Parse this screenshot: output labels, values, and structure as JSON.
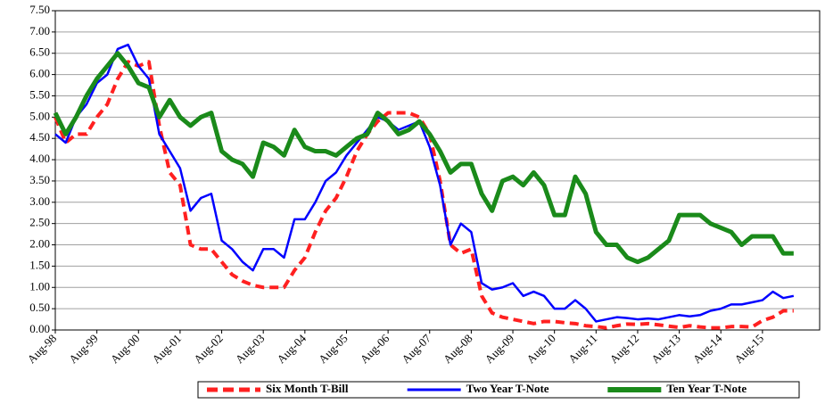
{
  "chart_data": {
    "type": "line",
    "categories": [
      "Aug-98",
      null,
      null,
      null,
      "Aug-99",
      null,
      null,
      null,
      "Aug-00",
      null,
      null,
      null,
      "Aug-01",
      null,
      null,
      null,
      "Aug-02",
      null,
      null,
      null,
      "Aug-03",
      null,
      null,
      null,
      "Aug-04",
      null,
      null,
      null,
      "Aug-05",
      null,
      null,
      null,
      "Aug-06",
      null,
      null,
      null,
      "Aug-07",
      null,
      null,
      null,
      "Aug-08",
      null,
      null,
      null,
      "Aug-09",
      null,
      null,
      null,
      "Aug-10",
      null,
      null,
      null,
      "Aug-11",
      null,
      null,
      null,
      "Aug-12",
      null,
      null,
      null,
      "Aug-13",
      null,
      null,
      null,
      "Aug-14",
      null,
      null,
      null,
      "Aug-15",
      null,
      null,
      null
    ],
    "series": [
      {
        "name": "Six Month T-Bill",
        "color": "#ff2020",
        "dash": true,
        "values": [
          5.0,
          4.4,
          4.6,
          4.6,
          5.0,
          5.3,
          5.9,
          6.3,
          6.2,
          6.3,
          4.8,
          3.7,
          3.4,
          2.0,
          1.9,
          1.9,
          1.6,
          1.3,
          1.15,
          1.05,
          1.0,
          1.0,
          1.0,
          1.4,
          1.7,
          2.3,
          2.8,
          3.1,
          3.6,
          4.2,
          4.6,
          4.9,
          5.1,
          5.1,
          5.1,
          5.0,
          4.6,
          3.5,
          2.0,
          1.8,
          1.9,
          0.8,
          0.4,
          0.3,
          0.25,
          0.2,
          0.15,
          0.2,
          0.2,
          0.17,
          0.15,
          0.1,
          0.08,
          0.05,
          0.1,
          0.14,
          0.13,
          0.15,
          0.12,
          0.09,
          0.06,
          0.1,
          0.07,
          0.05,
          0.05,
          0.08,
          0.08,
          0.07,
          0.22,
          0.3,
          0.45,
          0.45
        ]
      },
      {
        "name": "Two Year T-Note",
        "color": "#0000ff",
        "dash": false,
        "values": [
          4.6,
          4.4,
          5.0,
          5.3,
          5.8,
          6.0,
          6.6,
          6.7,
          6.2,
          5.9,
          4.6,
          4.2,
          3.8,
          2.8,
          3.1,
          3.2,
          2.1,
          1.9,
          1.6,
          1.4,
          1.9,
          1.9,
          1.7,
          2.6,
          2.6,
          3.0,
          3.5,
          3.7,
          4.1,
          4.4,
          4.7,
          5.0,
          4.9,
          4.7,
          4.8,
          4.9,
          4.3,
          3.4,
          2.0,
          2.5,
          2.3,
          1.1,
          0.95,
          1.0,
          1.1,
          0.8,
          0.9,
          0.8,
          0.5,
          0.5,
          0.7,
          0.5,
          0.2,
          0.25,
          0.3,
          0.28,
          0.25,
          0.27,
          0.25,
          0.3,
          0.35,
          0.32,
          0.35,
          0.45,
          0.5,
          0.6,
          0.6,
          0.65,
          0.7,
          0.9,
          0.75,
          0.8
        ]
      },
      {
        "name": "Ten Year T-Note",
        "color": "#1a8a1a",
        "dash": false,
        "values": [
          5.1,
          4.6,
          5.0,
          5.5,
          5.9,
          6.2,
          6.5,
          6.2,
          5.8,
          5.7,
          5.0,
          5.4,
          5.0,
          4.8,
          5.0,
          5.1,
          4.2,
          4.0,
          3.9,
          3.6,
          4.4,
          4.3,
          4.1,
          4.7,
          4.3,
          4.2,
          4.2,
          4.1,
          4.3,
          4.5,
          4.6,
          5.1,
          4.9,
          4.6,
          4.7,
          4.9,
          4.6,
          4.2,
          3.7,
          3.9,
          3.9,
          3.2,
          2.8,
          3.5,
          3.6,
          3.4,
          3.7,
          3.4,
          2.7,
          2.7,
          3.6,
          3.2,
          2.3,
          2.0,
          2.0,
          1.7,
          1.6,
          1.7,
          1.9,
          2.1,
          2.7,
          2.7,
          2.7,
          2.5,
          2.4,
          2.3,
          2.0,
          2.2,
          2.2,
          2.2,
          1.8,
          1.8
        ]
      }
    ],
    "ylim": [
      0,
      7.5
    ],
    "yticks": [
      {
        "value": 0,
        "label": "0.00"
      },
      {
        "value": 0.5,
        "label": "0.50"
      },
      {
        "value": 1,
        "label": "1.00"
      },
      {
        "value": 1.5,
        "label": "1.50"
      },
      {
        "value": 2,
        "label": "2.00"
      },
      {
        "value": 2.5,
        "label": "2.50"
      },
      {
        "value": 3,
        "label": "3.00"
      },
      {
        "value": 3.5,
        "label": "3.50"
      },
      {
        "value": 4,
        "label": "4.00"
      },
      {
        "value": 4.5,
        "label": "4.50"
      },
      {
        "value": 5,
        "label": "5.00"
      },
      {
        "value": 5.5,
        "label": "5.50"
      },
      {
        "value": 6,
        "label": "6.00"
      },
      {
        "value": 6.5,
        "label": "6.50"
      },
      {
        "value": 7,
        "label": "7.00"
      },
      {
        "value": 7.5,
        "label": "7.50"
      }
    ],
    "grid": true,
    "legend": "bottom"
  }
}
